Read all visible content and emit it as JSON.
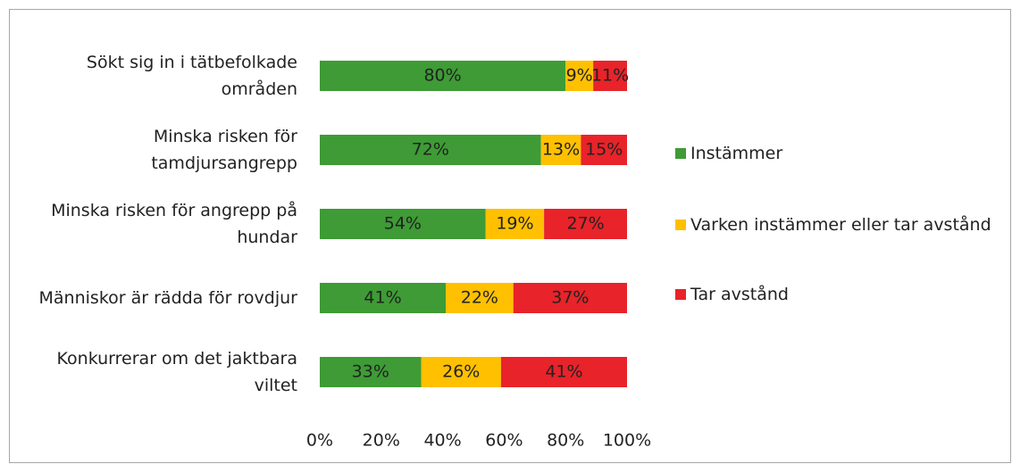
{
  "chart_data": {
    "type": "stacked_bar_horizontal",
    "categories": [
      "Sökt sig in i tätbefolkade områden",
      "Minska risken för tamdjursangrepp",
      "Minska risken för angrepp på hundar",
      "Människor är rädda för rovdjur",
      "Konkurrerar om det jaktbara viltet"
    ],
    "series": [
      {
        "name": "Instämmer",
        "color": "#3e9b35",
        "values": [
          80,
          72,
          54,
          41,
          33
        ],
        "value_labels": [
          "80%",
          "72%",
          "54%",
          "41%",
          "33%"
        ]
      },
      {
        "name": "Varken instämmer eller tar avstånd",
        "color": "#ffc000",
        "values": [
          9,
          13,
          19,
          22,
          26
        ],
        "value_labels": [
          "9%",
          "13%",
          "19%",
          "22%",
          "26%"
        ]
      },
      {
        "name": "Tar avstånd",
        "color": "#e8232a",
        "values": [
          11,
          15,
          27,
          37,
          41
        ],
        "value_labels": [
          "11%",
          "15%",
          "27%",
          "37%",
          "41%"
        ]
      }
    ],
    "xlim": [
      0,
      100
    ],
    "xticks": [
      {
        "value": 0,
        "label": "0%"
      },
      {
        "value": 20,
        "label": "20%"
      },
      {
        "value": 40,
        "label": "40%"
      },
      {
        "value": 60,
        "label": "60%"
      },
      {
        "value": 80,
        "label": "80%"
      },
      {
        "value": 100,
        "label": "100%"
      }
    ],
    "legend": "right"
  }
}
